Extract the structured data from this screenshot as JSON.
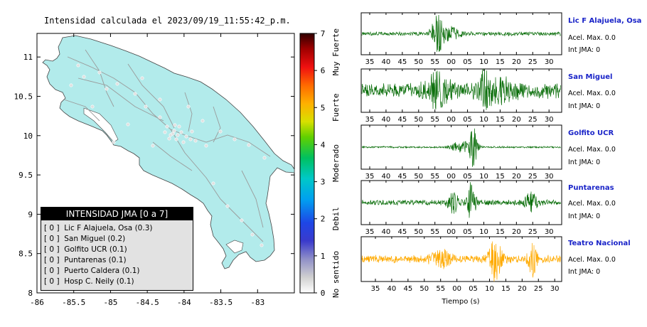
{
  "map": {
    "title": "Intensidad calculada el 2023/09/19_11:55:42_p.m.",
    "x_ticks": [
      "-86",
      "-85.5",
      "-85",
      "-84.5",
      "-84",
      "-83.5",
      "-83"
    ],
    "y_ticks": [
      "11",
      "10.5",
      "10",
      "9.5",
      "9",
      "8.5",
      "8"
    ],
    "xlim": [
      -86,
      -82.5
    ],
    "ylim": [
      8,
      11.3
    ],
    "land_color": "#b2ebeb",
    "colorbar": {
      "ticks": [
        "0",
        "1",
        "2",
        "3",
        "4",
        "5",
        "6",
        "7"
      ],
      "labels": [
        "No sentido",
        "Debil",
        "Moderado",
        "Fuerte",
        "Muy Fuerte"
      ]
    },
    "legend": {
      "title": "INTENSIDAD JMA [0 a 7]",
      "rows": [
        "[ 0 ]  Lic F Alajuela, Osa (0.3)",
        "[ 0 ]  San Miguel (0.2)",
        "[ 0 ]  Golfito UCR (0.1)",
        "[ 0 ]  Puntarenas (0.1)",
        "[ 0 ]  Puerto Caldera (0.1)",
        "[ 0 ]  Hosp C. Neily (0.1)"
      ]
    }
  },
  "chart_data": {
    "type": "line",
    "xlabel": "Tiempo (s)",
    "x_tick_labels": [
      "35",
      "40",
      "45",
      "50",
      "55",
      "00",
      "05",
      "10",
      "15",
      "20",
      "25",
      "30"
    ],
    "series": [
      {
        "name": "Lic F Alajuela, Osa",
        "acel_max": "Acel. Max. 0.0",
        "int_jma": "Int JMA: 0",
        "color": "#0a6e0a",
        "burst": [
          [
            38,
            1.0,
            3
          ],
          [
            45,
            0.35,
            4
          ]
        ],
        "base": 0.12
      },
      {
        "name": "San Miguel",
        "acel_max": "Acel. Max. 0.0",
        "int_jma": "Int JMA: 0",
        "color": "#0a6e0a",
        "burst": [
          [
            37,
            0.7,
            6
          ],
          [
            61,
            0.9,
            3
          ],
          [
            70,
            0.5,
            6
          ]
        ],
        "base": 0.45
      },
      {
        "name": "Golfito UCR",
        "acel_max": "Acel. Max. 0.0",
        "int_jma": "Int JMA: 0",
        "color": "#0a6e0a",
        "burst": [
          [
            56,
            1.0,
            2
          ],
          [
            50,
            0.3,
            5
          ]
        ],
        "base": 0.05
      },
      {
        "name": "Puntarenas",
        "acel_max": "Acel. Max. 0.0",
        "int_jma": "Int JMA: 0",
        "color": "#0a6e0a",
        "burst": [
          [
            55,
            1.0,
            2
          ],
          [
            46,
            0.45,
            3
          ],
          [
            85,
            0.5,
            3
          ]
        ],
        "base": 0.15
      },
      {
        "name": "Teatro Nacional",
        "acel_max": "Acel. Max. 0.0",
        "int_jma": "Int JMA: 0",
        "color": "#ffaa00",
        "burst": [
          [
            67,
            1.0,
            3
          ],
          [
            86,
            0.9,
            2
          ],
          [
            40,
            0.35,
            5
          ]
        ],
        "base": 0.22
      }
    ]
  }
}
